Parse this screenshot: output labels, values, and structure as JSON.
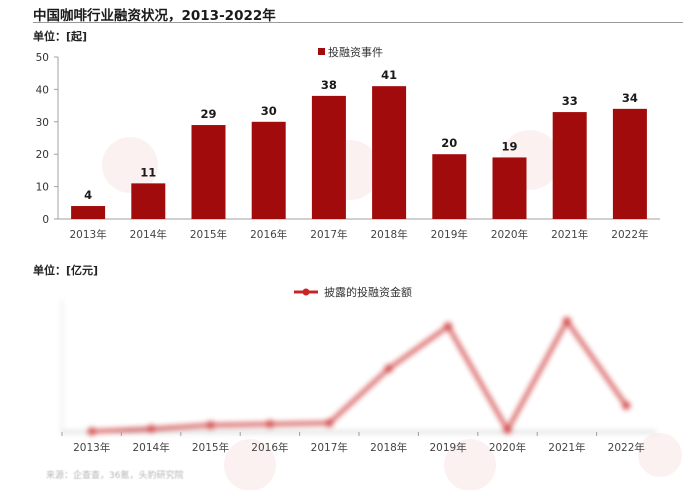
{
  "page": {
    "title": "中国咖啡行业融资状况，2013-2022年",
    "source": "来源：企查查，36氪，头豹研究院"
  },
  "colors": {
    "bar": "#a20b0b",
    "line": "#c92525",
    "axis": "#a0a0a0"
  },
  "chart_data": [
    {
      "type": "bar",
      "unit_label": "单位：[起]",
      "categories": [
        "2013年",
        "2014年",
        "2015年",
        "2016年",
        "2017年",
        "2018年",
        "2019年",
        "2020年",
        "2021年",
        "2022年"
      ],
      "series": [
        {
          "name": "投融资事件",
          "values": [
            4,
            11,
            29,
            30,
            38,
            41,
            20,
            19,
            33,
            34
          ]
        }
      ],
      "ylim": [
        0,
        50
      ],
      "yticks": [
        0,
        10,
        20,
        30,
        40,
        50
      ],
      "grid": false,
      "legend": "top-center",
      "data_labels": true
    },
    {
      "type": "line",
      "unit_label": "单位：[亿元]",
      "categories": [
        "2013年",
        "2014年",
        "2015年",
        "2016年",
        "2017年",
        "2018年",
        "2019年",
        "2020年",
        "2021年",
        "2022年"
      ],
      "series": [
        {
          "name": "披露的投融资金额",
          "values": [
            0.1,
            0.6,
            1.3,
            1.5,
            1.7,
            12,
            20,
            0.4,
            21,
            5
          ]
        }
      ],
      "ylim": [
        0,
        25
      ],
      "legend": "top-center",
      "blurred": true
    }
  ]
}
